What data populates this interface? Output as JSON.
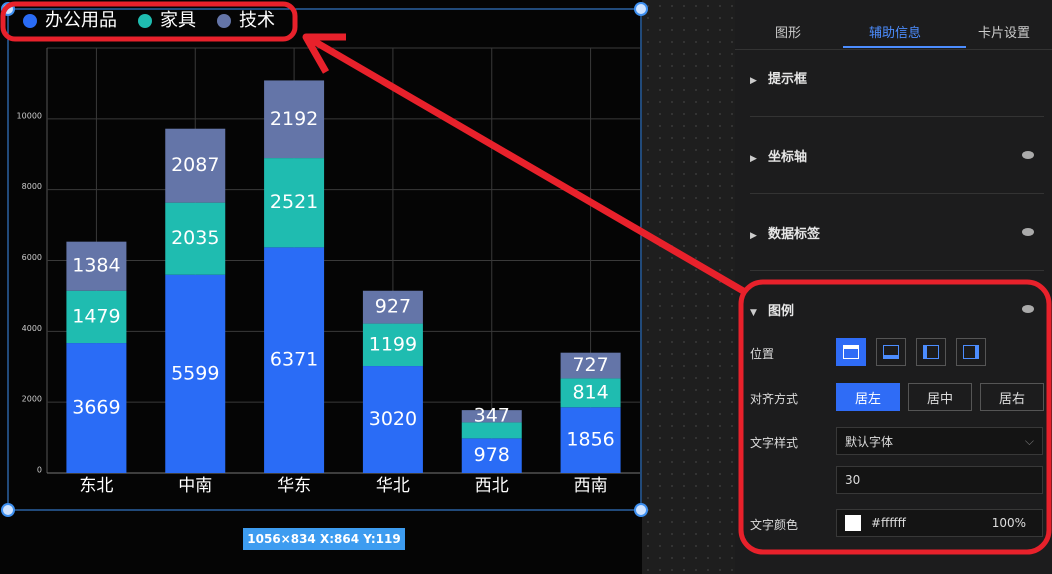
{
  "chart_data": {
    "type": "stacked-bar",
    "categories": [
      "东北",
      "中南",
      "华东",
      "华北",
      "西北",
      "西南"
    ],
    "series": [
      {
        "name": "办公用品",
        "color": "#2a6cf6",
        "values": [
          3669,
          5599,
          6371,
          3020,
          978,
          1856
        ]
      },
      {
        "name": "家具",
        "color": "#1fbcb0",
        "values": [
          1479,
          2035,
          2521,
          1199,
          450,
          814
        ]
      },
      {
        "name": "技术",
        "color": "#6475a8",
        "values": [
          1384,
          2087,
          2192,
          927,
          347,
          727
        ]
      }
    ],
    "ylim": [
      0,
      12000
    ],
    "yticks": [
      0,
      2000,
      4000,
      6000,
      8000,
      10000
    ],
    "grid": true,
    "legend": "top-left"
  },
  "status": "1056×834   X:864 Y:119",
  "panel": {
    "tabs": [
      "图形",
      "辅助信息",
      "卡片设置"
    ],
    "sections": [
      "提示框",
      "坐标轴",
      "数据标签",
      "图例"
    ],
    "legend_settings": {
      "position_label": "位置",
      "align_label": "对齐方式",
      "align_options": [
        "居左",
        "居中",
        "居右"
      ],
      "font_label": "文字样式",
      "font": "默认字体",
      "font_size": 30,
      "color_label": "文字颜色",
      "color": "#ffffff",
      "opacity": "100%"
    }
  }
}
